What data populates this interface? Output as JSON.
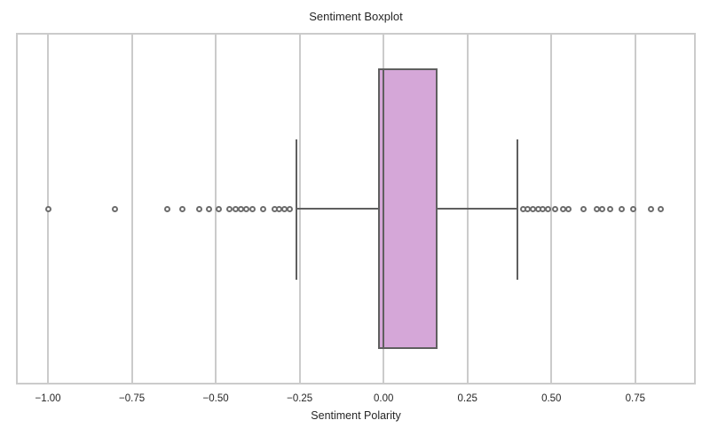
{
  "figure": {
    "title": "Sentiment Boxplot",
    "xlabel": "Sentiment Polarity"
  },
  "colors": {
    "background": "#ffffff",
    "grid": "#cbcbcb",
    "line": "#5f5f5f",
    "box_fill": "#d5a7d8",
    "flier_edge": "#6d6d6d",
    "flier_fill": "#ffffff",
    "text": "#262626"
  },
  "chart_data": {
    "type": "boxplot",
    "orientation": "horizontal",
    "title": "Sentiment Boxplot",
    "xlabel": "Sentiment Polarity",
    "ylabel": "",
    "grid": true,
    "legend": false,
    "xlim": [
      -1.09,
      0.925
    ],
    "xticks": [
      -1.0,
      -0.75,
      -0.5,
      -0.25,
      0.0,
      0.25,
      0.5,
      0.75
    ],
    "xtick_labels": [
      "−1.00",
      "−0.75",
      "−0.50",
      "−0.25",
      "0.00",
      "0.25",
      "0.50",
      "0.75"
    ],
    "series": [
      {
        "name": "Sentiment Polarity",
        "q1": -0.015,
        "median": 0.0,
        "q3": 0.158,
        "whisker_low": -0.26,
        "whisker_high": 0.4,
        "outliers": [
          -1.0,
          -0.8,
          -0.645,
          -0.6,
          -0.55,
          -0.52,
          -0.49,
          -0.46,
          -0.44,
          -0.425,
          -0.41,
          -0.39,
          -0.36,
          -0.325,
          -0.31,
          -0.295,
          -0.28,
          0.415,
          0.43,
          0.445,
          0.46,
          0.475,
          0.49,
          0.512,
          0.535,
          0.552,
          0.595,
          0.635,
          0.652,
          0.675,
          0.71,
          0.745,
          0.798,
          0.825
        ]
      }
    ]
  }
}
